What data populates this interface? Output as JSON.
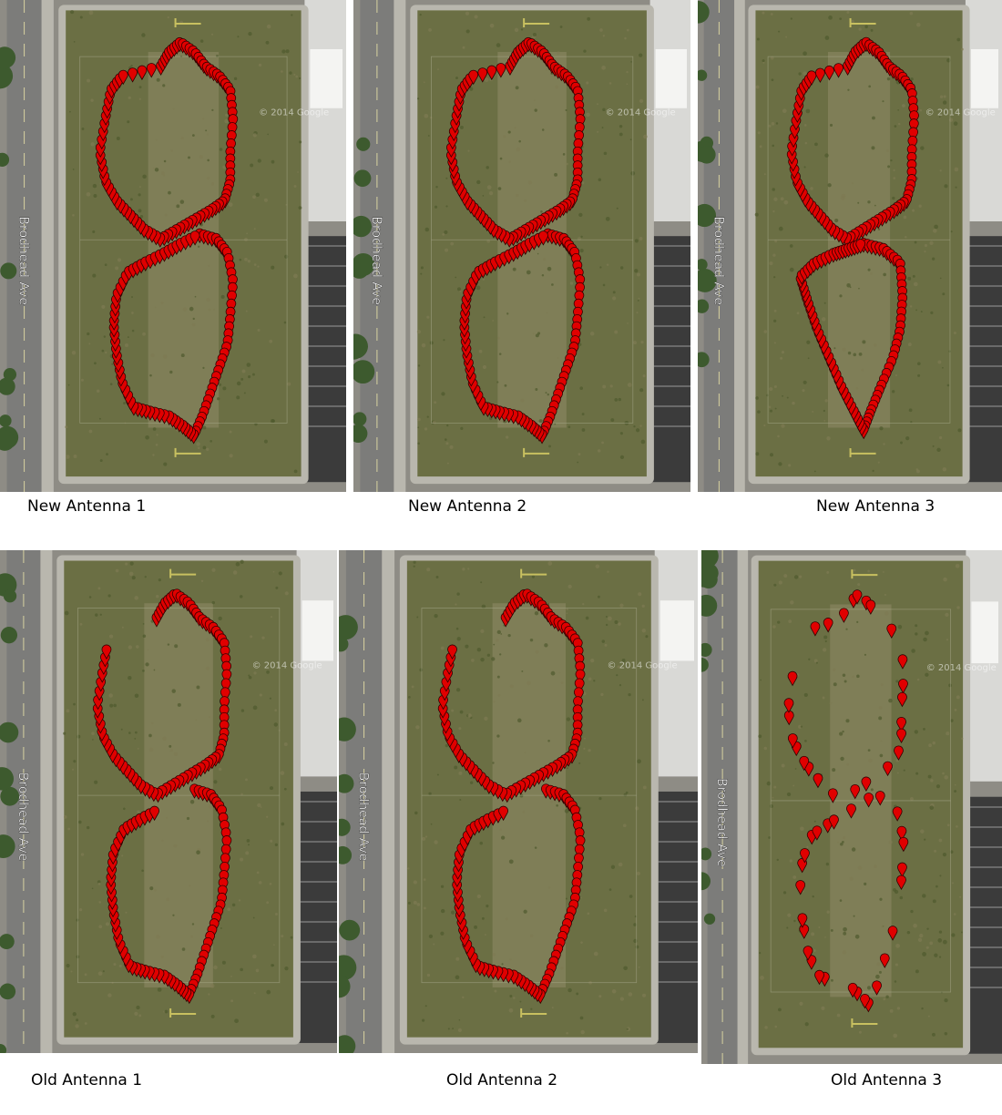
{
  "street_label": "Brodhead Ave",
  "watermark": "© 2014 Google",
  "panels": [
    {
      "caption": "New Antenna 1",
      "track": "figure8"
    },
    {
      "caption": "New Antenna 2",
      "track": "figure8"
    },
    {
      "caption": "New Antenna 3",
      "track": "figure8-skewed"
    },
    {
      "caption": "Old Antenna 1",
      "track": "figure8-open"
    },
    {
      "caption": "Old Antenna 2",
      "track": "figure8-open"
    },
    {
      "caption": "Old Antenna 3",
      "track": "figure8-sparse"
    }
  ],
  "colors": {
    "field": "#6b6f44",
    "road": "#7c7c7a",
    "sidewalk": "#b9b7ae",
    "marker": "#e00000",
    "marker_outline": "#300000"
  }
}
